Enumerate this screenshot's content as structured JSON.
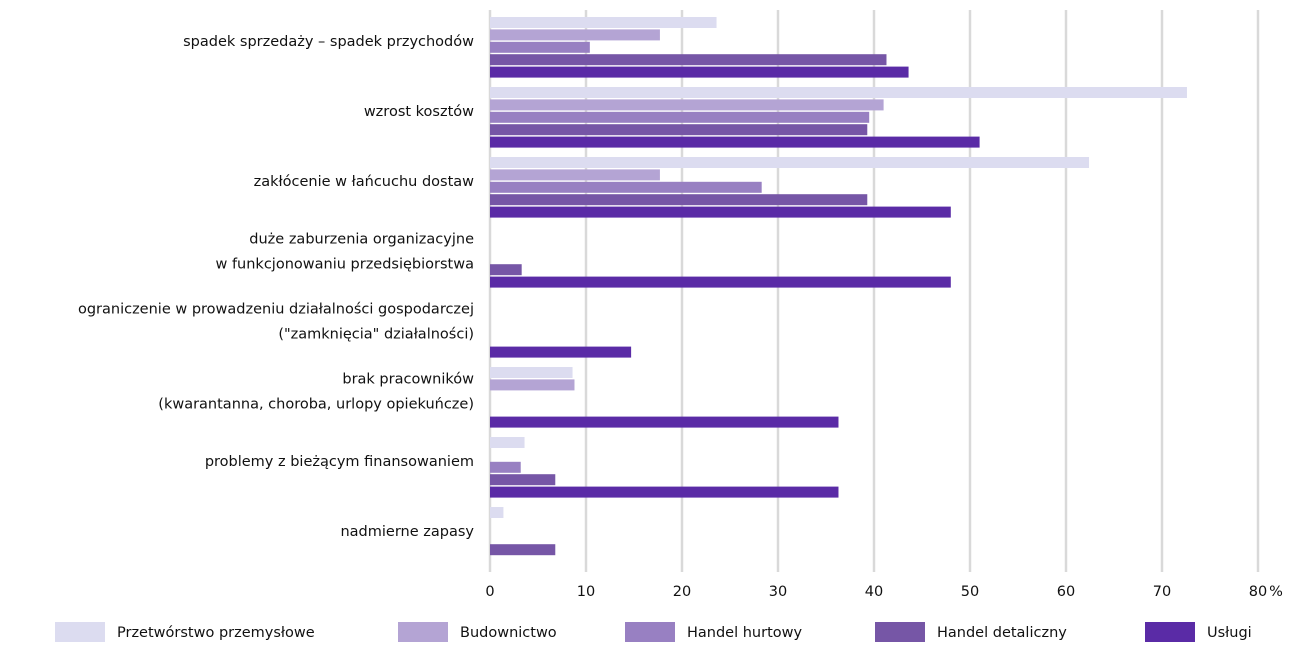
{
  "chart_data": {
    "type": "hbar",
    "categories": [
      [
        "spadek sprzedaży – spadek przychodów"
      ],
      [
        "wzrost kosztów"
      ],
      [
        "zakłócenie w łańcuchu dostaw"
      ],
      [
        "duże zaburzenia organizacyjne",
        "w funkcjonowaniu przedsiębiorstwa"
      ],
      [
        "ograniczenie w prowadzeniu działalności gospodarczej",
        "(\"zamknięcia\" działalności)"
      ],
      [
        "brak pracowników",
        "(kwarantanna, choroba, urlopy opiekuńcze)"
      ],
      [
        "problemy z bieżącym finansowaniem"
      ],
      [
        "nadmierne zapasy"
      ]
    ],
    "series": [
      {
        "name": "Przetwórstwo przemysłowe",
        "color": "#dcdcf0",
        "values": [
          23.6,
          72.6,
          62.4,
          null,
          null,
          8.6,
          3.6,
          1.4
        ]
      },
      {
        "name": "Budownictwo",
        "color": "#b4a4d4",
        "values": [
          17.7,
          41.0,
          17.7,
          null,
          null,
          8.8,
          null,
          null
        ]
      },
      {
        "name": "Handel hurtowy",
        "color": "#9880c2",
        "values": [
          10.4,
          39.5,
          28.3,
          null,
          null,
          null,
          3.2,
          null
        ]
      },
      {
        "name": "Handel detaliczny",
        "color": "#7656a6",
        "values": [
          41.3,
          39.3,
          39.3,
          3.3,
          null,
          null,
          6.8,
          6.8
        ]
      },
      {
        "name": "Usługi",
        "color": "#5a2ba6",
        "values": [
          43.6,
          51.0,
          48.0,
          48.0,
          14.7,
          36.3,
          36.3,
          null
        ]
      }
    ],
    "xlabel": "%",
    "xlim": [
      0,
      80
    ],
    "xticks": [
      0,
      10,
      20,
      30,
      40,
      50,
      60,
      70,
      80
    ],
    "grid": true
  }
}
